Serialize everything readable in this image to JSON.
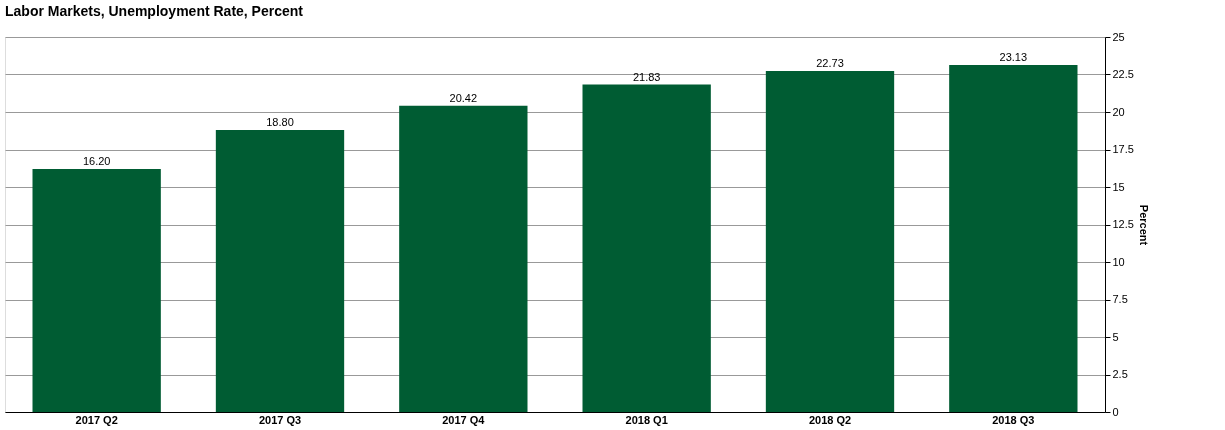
{
  "chart_data": {
    "type": "bar",
    "title": "Labor Markets, Unemployment Rate, Percent",
    "ylabel": "Percent",
    "categories": [
      "2017 Q2",
      "2017 Q3",
      "2017 Q4",
      "2018 Q1",
      "2018 Q2",
      "2018 Q3"
    ],
    "values": [
      16.2,
      18.8,
      20.42,
      21.83,
      22.73,
      23.13
    ],
    "value_labels": [
      "16.20",
      "18.80",
      "20.42",
      "21.83",
      "22.73",
      "23.13"
    ],
    "color": "#005c33",
    "ylim": [
      0,
      25
    ],
    "yticks": [
      0,
      2.5,
      5,
      7.5,
      10,
      12.5,
      15,
      17.5,
      20,
      22.5,
      25
    ],
    "grid": "y"
  }
}
